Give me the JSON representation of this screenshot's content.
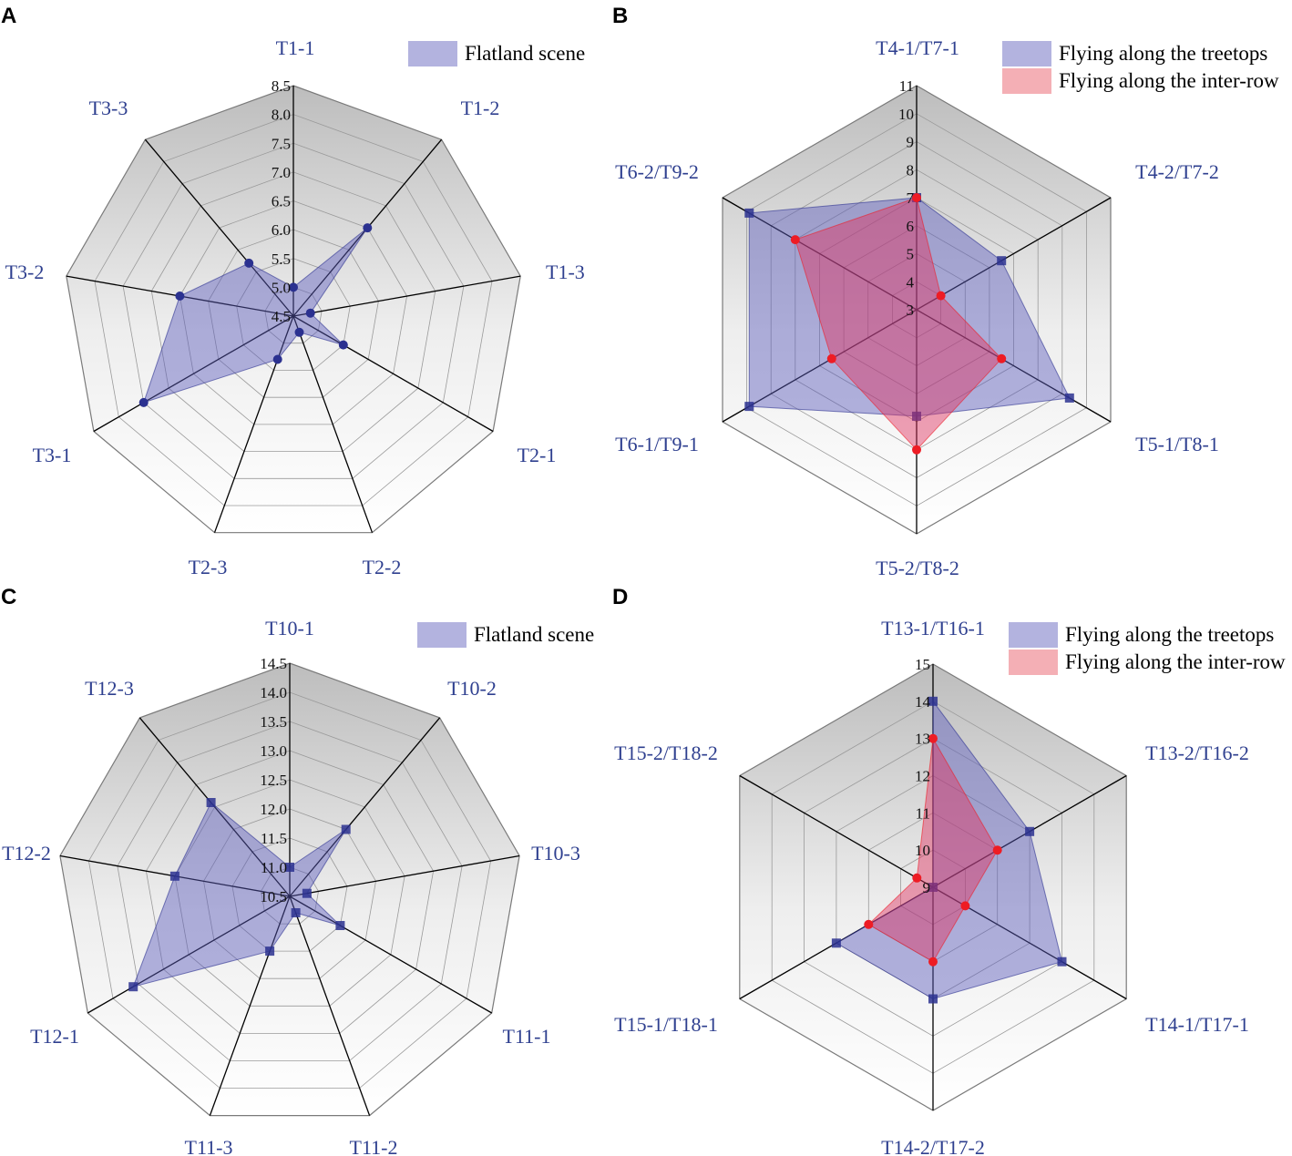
{
  "colors": {
    "label_blue": "#2e3f8f",
    "series_blue_fill": "#5b5bbd",
    "series_blue_marker": "#2b3190",
    "series_red_fill": "#e03060",
    "series_red_marker": "#ee1c24",
    "legend_blue": "#b3b3df",
    "legend_red": "#f4afb5"
  },
  "chart_data": [
    {
      "panel": "A",
      "type": "radar",
      "axes": [
        "T1-1",
        "T1-2",
        "T1-3",
        "T2-1",
        "T2-2",
        "T2-3",
        "T3-1",
        "T3-2",
        "T3-3"
      ],
      "ticks": [
        "4.5",
        "5.0",
        "5.5",
        "6.0",
        "6.5",
        "7.0",
        "7.5",
        "8.0",
        "8.5"
      ],
      "rmin": 4.5,
      "rmax": 8.5,
      "marker": "circle",
      "legend": [
        "Flatland scene"
      ],
      "series": [
        {
          "name": "Flatland scene",
          "color": "blue",
          "values": [
            5.0,
            6.5,
            4.8,
            5.5,
            4.8,
            5.3,
            7.5,
            6.5,
            5.7
          ]
        }
      ]
    },
    {
      "panel": "B",
      "type": "radar",
      "axes": [
        "T4-1/T7-1",
        "T4-2/T7-2",
        "T5-1/T8-1",
        "T5-2/T8-2",
        "T6-1/T9-1",
        "T6-2/T9-2"
      ],
      "ticks": [
        "3",
        "4",
        "5",
        "6",
        "7",
        "8",
        "9",
        "10",
        "11"
      ],
      "rmin": 3,
      "rmax": 11,
      "marker": "square",
      "legend": [
        "Flying along the treetops",
        "Flying along the inter-row"
      ],
      "series": [
        {
          "name": "Flying along the treetops",
          "color": "blue",
          "values": [
            7.0,
            6.5,
            9.3,
            6.8,
            9.9,
            9.9
          ]
        },
        {
          "name": "Flying along the inter-row",
          "color": "red",
          "values": [
            7.0,
            4.0,
            6.5,
            8.0,
            6.5,
            8.0
          ]
        }
      ]
    },
    {
      "panel": "C",
      "type": "radar",
      "axes": [
        "T10-1",
        "T10-2",
        "T10-3",
        "T11-1",
        "T11-2",
        "T11-3",
        "T12-1",
        "T12-2",
        "T12-3"
      ],
      "ticks": [
        "10.5",
        "11.0",
        "11.5",
        "12.0",
        "12.5",
        "13.0",
        "13.5",
        "14.0",
        "14.5"
      ],
      "rmin": 10.5,
      "rmax": 14.5,
      "marker": "square",
      "legend": [
        "Flatland scene"
      ],
      "series": [
        {
          "name": "Flatland scene",
          "color": "blue",
          "values": [
            11.0,
            12.0,
            10.8,
            11.5,
            10.8,
            11.5,
            13.6,
            12.5,
            12.6
          ]
        }
      ]
    },
    {
      "panel": "D",
      "type": "radar",
      "axes": [
        "T13-1/T16-1",
        "T13-2/T16-2",
        "T14-1/T17-1",
        "T14-2/T17-2",
        "T15-1/T18-1",
        "T15-2/T18-2"
      ],
      "ticks": [
        "9",
        "10",
        "11",
        "12",
        "13",
        "14",
        "15"
      ],
      "rmin": 9,
      "rmax": 15,
      "marker": "square",
      "legend": [
        "Flying along the treetops",
        "Flying along the inter-row"
      ],
      "series": [
        {
          "name": "Flying along the treetops",
          "color": "blue",
          "values": [
            14.0,
            12.0,
            13.0,
            12.0,
            12.0,
            9.0
          ]
        },
        {
          "name": "Flying along the inter-row",
          "color": "red",
          "values": [
            13.0,
            11.0,
            10.0,
            11.0,
            11.0,
            9.5
          ]
        }
      ]
    }
  ]
}
